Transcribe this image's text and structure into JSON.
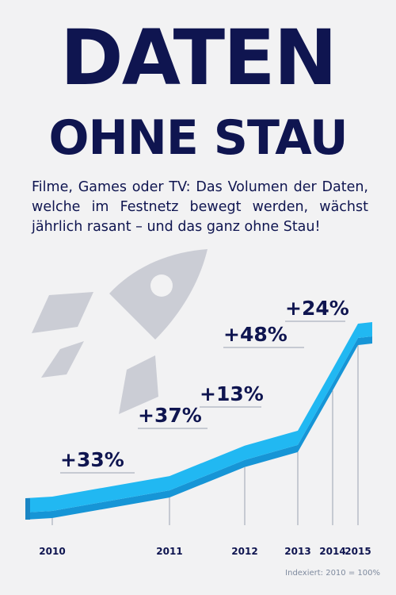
{
  "headline": {
    "line1": "DATEN",
    "line2": "OHNE STAU"
  },
  "intro": "Filme, Games oder TV: Das Volumen der Daten, welche im Festnetz bewegt werden, wächst jährlich rasant – und das ganz ohne Stau!",
  "footnote": "Indexiert: 2010 = 100%",
  "colors": {
    "navy": "#0f1550",
    "ribbon": "#21b8f2",
    "ribbon_side": "#1695d6",
    "rocket": "#cbcdd5",
    "leader": "#9aa1b1"
  },
  "icons": [
    "rocket-icon"
  ],
  "chart_data": {
    "type": "line",
    "title": "",
    "xlabel": "",
    "ylabel": "",
    "x": [
      "2010",
      "2011",
      "2012",
      "2013",
      "2014",
      "2015"
    ],
    "values": [
      100,
      133,
      182,
      206,
      305,
      378
    ],
    "growth_labels": [
      "+33%",
      "+37%",
      "+13%",
      "+48%",
      "+24%"
    ],
    "index_note": "Indexiert: 2010 = 100%",
    "grid": false,
    "legend": "none"
  }
}
